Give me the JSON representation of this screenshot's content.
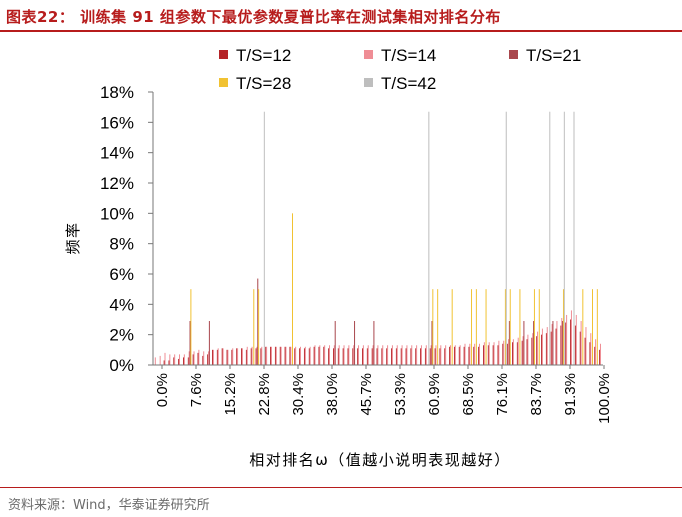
{
  "header": {
    "title": "图表22：  训练集 91 组参数下最优参数夏普比率在测试集相对排名分布"
  },
  "source": "资料来源：Wind，华泰证券研究所",
  "chart_data": {
    "type": "bar",
    "xlabel": "相对排名ω（值越小说明表现越好）",
    "ylabel": "频率",
    "ylim": [
      0,
      18
    ],
    "y_ticks": [
      "0%",
      "2%",
      "4%",
      "6%",
      "8%",
      "10%",
      "12%",
      "14%",
      "16%",
      "18%"
    ],
    "x_ticks": [
      "0.0%",
      "7.6%",
      "15.2%",
      "22.8%",
      "30.4%",
      "38.0%",
      "45.7%",
      "53.3%",
      "60.9%",
      "68.5%",
      "76.1%",
      "83.7%",
      "91.3%",
      "100.0%"
    ],
    "categories": [
      "0.0%",
      "1.1%",
      "2.2%",
      "3.3%",
      "4.3%",
      "5.4%",
      "6.5%",
      "7.6%",
      "8.7%",
      "9.8%",
      "10.9%",
      "12.0%",
      "13.0%",
      "14.1%",
      "15.2%",
      "16.3%",
      "17.4%",
      "18.5%",
      "19.6%",
      "20.7%",
      "21.7%",
      "22.8%",
      "23.9%",
      "25.0%",
      "26.1%",
      "27.2%",
      "28.3%",
      "29.3%",
      "30.4%",
      "31.5%",
      "32.6%",
      "33.7%",
      "34.8%",
      "35.9%",
      "37.0%",
      "38.0%",
      "39.1%",
      "40.2%",
      "41.3%",
      "42.4%",
      "43.5%",
      "44.6%",
      "45.7%",
      "46.7%",
      "47.8%",
      "48.9%",
      "50.0%",
      "51.1%",
      "52.2%",
      "53.3%",
      "54.3%",
      "55.4%",
      "56.5%",
      "57.6%",
      "58.7%",
      "59.8%",
      "60.9%",
      "62.0%",
      "63.0%",
      "64.1%",
      "65.2%",
      "66.3%",
      "67.4%",
      "68.5%",
      "69.6%",
      "70.7%",
      "71.7%",
      "72.8%",
      "73.9%",
      "75.0%",
      "76.1%",
      "77.2%",
      "78.3%",
      "79.3%",
      "80.4%",
      "81.5%",
      "82.6%",
      "83.7%",
      "84.8%",
      "85.9%",
      "87.0%",
      "88.0%",
      "89.1%",
      "90.2%",
      "91.3%",
      "92.4%",
      "93.5%",
      "94.6%",
      "95.7%",
      "96.7%",
      "97.8%",
      "98.9%",
      "100.0%"
    ],
    "colors": {
      "T/S=12": "#b52428",
      "T/S=14": "#ef8d95",
      "T/S=21": "#a9474d",
      "T/S=28": "#f1c232",
      "T/S=42": "#bebebe"
    },
    "series": [
      {
        "name": "T/S=12",
        "values": [
          0,
          0,
          0.3,
          0.3,
          0.5,
          0.4,
          0.5,
          0.5,
          0.7,
          0.8,
          0.6,
          0.7,
          1.0,
          1.0,
          1.1,
          1.0,
          1.0,
          1.1,
          1.1,
          1.0,
          1.1,
          1.1,
          1.1,
          1.2,
          1.2,
          1.2,
          1.2,
          1.2,
          1.2,
          1.1,
          1.1,
          1.1,
          1.1,
          1.2,
          1.2,
          1.2,
          1.1,
          1.1,
          1.1,
          1.1,
          1.1,
          1.1,
          1.1,
          1.1,
          1.1,
          1.1,
          1.1,
          1.1,
          1.1,
          1.1,
          1.1,
          1.1,
          1.1,
          1.1,
          1.1,
          1.1,
          1.1,
          1.1,
          1.1,
          1.1,
          1.1,
          1.2,
          1.2,
          1.2,
          1.2,
          1.2,
          1.2,
          1.2,
          1.3,
          1.3,
          1.3,
          1.3,
          1.4,
          1.4,
          1.5,
          1.5,
          1.6,
          1.7,
          1.8,
          1.9,
          2.0,
          2.1,
          2.2,
          2.4,
          2.6,
          2.8,
          3.0,
          2.6,
          2.2,
          1.8,
          1.5,
          1.2,
          1.0
        ]
      },
      {
        "name": "T/S=14",
        "values": [
          0.5,
          0.6,
          0.8,
          0.7,
          0.7,
          0.7,
          0.7,
          0.9,
          0.9,
          1.0,
          0.9,
          0.9,
          1.0,
          1.1,
          1.1,
          1.0,
          1.1,
          1.1,
          1.1,
          1.2,
          1.2,
          1.2,
          1.2,
          1.2,
          1.2,
          1.2,
          1.2,
          1.2,
          1.2,
          1.2,
          1.2,
          1.2,
          1.2,
          1.3,
          1.3,
          1.3,
          1.3,
          1.3,
          1.3,
          1.3,
          1.3,
          1.3,
          1.3,
          1.3,
          1.3,
          1.3,
          1.3,
          1.3,
          1.3,
          1.3,
          1.3,
          1.3,
          1.3,
          1.3,
          1.3,
          1.3,
          1.3,
          1.3,
          1.3,
          1.3,
          1.3,
          1.3,
          1.3,
          1.3,
          1.4,
          1.4,
          1.4,
          1.4,
          1.5,
          1.5,
          1.5,
          1.6,
          1.6,
          1.7,
          1.7,
          1.8,
          1.9,
          2.0,
          2.1,
          2.2,
          2.4,
          2.5,
          2.7,
          2.9,
          3.1,
          3.3,
          3.6,
          3.3,
          2.9,
          2.5,
          2.1,
          1.7,
          1.4
        ]
      },
      {
        "name": "T/S=21",
        "values": [
          0,
          0,
          0,
          0,
          0,
          0,
          0,
          2.9,
          0,
          0,
          0,
          2.9,
          0,
          0,
          0,
          0,
          0,
          0,
          0,
          0,
          0,
          5.7,
          0,
          0,
          0,
          0,
          0,
          0,
          0,
          0,
          0,
          0,
          0,
          0,
          0,
          0,
          0,
          2.9,
          0,
          0,
          0,
          2.9,
          0,
          0,
          0,
          2.9,
          0,
          0,
          0,
          0,
          0,
          0,
          0,
          0,
          0,
          0,
          0,
          2.9,
          0,
          0,
          0,
          0,
          0,
          0,
          0,
          0,
          0,
          0,
          0,
          0,
          0,
          0,
          0,
          2.9,
          0,
          0,
          2.9,
          0,
          2.9,
          0,
          0,
          0,
          2.9,
          0,
          2.9,
          0,
          0,
          0,
          0,
          0,
          0,
          0,
          0
        ]
      },
      {
        "name": "T/S=28",
        "values": [
          0,
          0,
          0,
          0,
          0,
          0,
          0,
          5.0,
          0,
          0,
          0,
          0,
          0,
          0,
          0,
          0,
          0,
          0,
          0,
          0,
          5.0,
          5.0,
          0,
          0,
          0,
          0,
          0,
          0,
          10.0,
          0,
          0,
          0,
          0,
          0,
          0,
          0,
          0,
          0,
          0,
          0,
          0,
          0,
          0,
          0,
          0,
          0,
          0,
          0,
          0,
          0,
          0,
          0,
          0,
          0,
          0,
          0,
          0,
          5.0,
          5.0,
          0,
          0,
          5.0,
          0,
          0,
          0,
          5.0,
          5.0,
          0,
          5.0,
          0,
          0,
          0,
          5.0,
          5.0,
          0,
          5.0,
          0,
          0,
          5.0,
          5.0,
          0,
          0,
          0,
          0,
          5.0,
          0,
          0,
          0,
          5.0,
          0,
          5.0,
          5.0,
          0
        ]
      },
      {
        "name": "T/S=42",
        "values": [
          0,
          0,
          0,
          0,
          0,
          0,
          0,
          0,
          0,
          0,
          0,
          0,
          0,
          0,
          0,
          0,
          0,
          0,
          0,
          0,
          0,
          0,
          16.7,
          0,
          0,
          0,
          0,
          0,
          0,
          0,
          0,
          0,
          0,
          0,
          0,
          0,
          0,
          0,
          0,
          0,
          0,
          0,
          0,
          0,
          0,
          0,
          0,
          0,
          0,
          0,
          0,
          0,
          0,
          0,
          0,
          0,
          16.7,
          0,
          0,
          0,
          0,
          0,
          0,
          0,
          0,
          0,
          0,
          0,
          0,
          0,
          0,
          0,
          16.7,
          0,
          0,
          0,
          0,
          0,
          0,
          0,
          0,
          16.7,
          0,
          0,
          16.7,
          0,
          16.7,
          0,
          0,
          0,
          0,
          0,
          0
        ]
      }
    ],
    "legend_position": "top",
    "grid": false
  }
}
